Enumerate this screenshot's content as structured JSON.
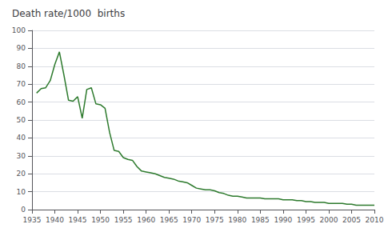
{
  "chart_data": {
    "type": "line",
    "title": "Death rate/1000  births",
    "color": "#2d7a2d",
    "x": [
      1936,
      1937,
      1938,
      1939,
      1940,
      1941,
      1942,
      1943,
      1944,
      1945,
      1946,
      1947,
      1948,
      1949,
      1950,
      1951,
      1952,
      1953,
      1954,
      1955,
      1956,
      1957,
      1958,
      1959,
      1960,
      1961,
      1962,
      1963,
      1964,
      1965,
      1966,
      1967,
      1968,
      1969,
      1970,
      1971,
      1972,
      1973,
      1974,
      1975,
      1976,
      1977,
      1978,
      1979,
      1980,
      1981,
      1982,
      1983,
      1984,
      1985,
      1986,
      1987,
      1988,
      1989,
      1990,
      1991,
      1992,
      1993,
      1994,
      1995,
      1996,
      1997,
      1998,
      1999,
      2000,
      2001,
      2002,
      2003,
      2004,
      2005,
      2006,
      2007,
      2008,
      2009,
      2010
    ],
    "values": [
      65.0,
      67.5,
      68.0,
      72.0,
      81.0,
      88.0,
      75.0,
      61.0,
      60.5,
      63.0,
      51.0,
      67.0,
      68.0,
      59.0,
      58.5,
      56.5,
      43.0,
      33.0,
      32.5,
      29.0,
      28.0,
      27.5,
      24.0,
      21.5,
      21.0,
      20.5,
      20.0,
      19.0,
      18.0,
      17.5,
      17.0,
      16.0,
      15.5,
      15.0,
      13.5,
      12.0,
      11.5,
      11.0,
      11.0,
      10.5,
      9.5,
      9.0,
      8.0,
      7.5,
      7.5,
      7.0,
      6.5,
      6.5,
      6.5,
      6.5,
      6.0,
      6.0,
      6.0,
      6.0,
      5.5,
      5.5,
      5.5,
      5.0,
      5.0,
      4.5,
      4.5,
      4.0,
      4.0,
      4.0,
      3.5,
      3.5,
      3.5,
      3.5,
      3.0,
      3.0,
      2.5,
      2.5,
      2.5,
      2.5,
      2.5
    ],
    "xlim": [
      1935,
      2010
    ],
    "ylim": [
      0,
      100
    ],
    "xticks": [
      1935,
      1940,
      1945,
      1950,
      1955,
      1960,
      1965,
      1970,
      1975,
      1980,
      1985,
      1990,
      1995,
      2000,
      2005,
      2010
    ],
    "yticks": [
      0,
      10,
      20,
      30,
      40,
      50,
      60,
      70,
      80,
      90,
      100
    ],
    "grid": true
  }
}
